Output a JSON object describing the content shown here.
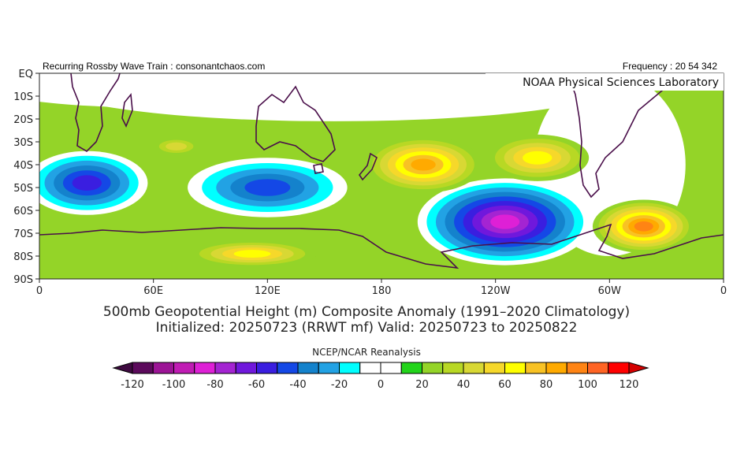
{
  "header": {
    "left_text": "Recurring Rossby Wave Train : consonantchaos.com",
    "right_text": "Frequency : 20 54 342",
    "credit": "NOAA Physical Sciences Laboratory"
  },
  "titles": {
    "line1": "500mb Geopotential Height (m) Composite Anomaly (1991–2020 Climatology)",
    "line2": "Initialized: 20250723 (RRWT mf) Valid: 20250723 to 20250822"
  },
  "map": {
    "projection": "cylindrical equidistant",
    "lon_range": [
      0,
      360
    ],
    "lat_range": [
      0,
      -90
    ],
    "lat_ticks": [
      "EQ",
      "10S",
      "20S",
      "30S",
      "40S",
      "50S",
      "60S",
      "70S",
      "80S",
      "90S"
    ],
    "lon_ticks": [
      "0",
      "60E",
      "120E",
      "180",
      "120W",
      "60W",
      "0"
    ],
    "anomaly_centers": [
      {
        "lon": 25,
        "lat": -48,
        "value": -60
      },
      {
        "lon": 120,
        "lat": -50,
        "value": -50
      },
      {
        "lon": 245,
        "lat": -65,
        "value": -90
      },
      {
        "lon": 202,
        "lat": -40,
        "value": 80
      },
      {
        "lon": 262,
        "lat": -37,
        "value": 60
      },
      {
        "lon": 318,
        "lat": -67,
        "value": 90
      },
      {
        "lon": 112,
        "lat": -79,
        "value": 60
      },
      {
        "lon": 72,
        "lat": -32,
        "value": 40
      }
    ]
  },
  "colorbar": {
    "title": "NCEP/NCAR Reanalysis",
    "labels": [
      "-120",
      "-100",
      "-80",
      "-60",
      "-40",
      "-20",
      "0",
      "20",
      "40",
      "60",
      "80",
      "100",
      "120"
    ],
    "levels": [
      -120,
      -110,
      -100,
      -90,
      -80,
      -70,
      -60,
      -50,
      -40,
      -30,
      -20,
      -10,
      0,
      10,
      20,
      30,
      40,
      50,
      60,
      70,
      80,
      90,
      100,
      110,
      120
    ],
    "colors": [
      "#5c0a5c",
      "#9c1496",
      "#c01cb4",
      "#de20d6",
      "#a424d2",
      "#7018dc",
      "#3a1ee0",
      "#1448e6",
      "#1482cc",
      "#22a2e4",
      "#00ffff",
      "#ffffff",
      "#ffffff",
      "#22d41a",
      "#94d428",
      "#b8d824",
      "#d8d834",
      "#f6d82a",
      "#ffff00",
      "#f8c224",
      "#ffaa00",
      "#ff8414",
      "#ff6424",
      "#ff0000"
    ],
    "under_color": "#3e0a40",
    "over_color": "#d40000"
  }
}
